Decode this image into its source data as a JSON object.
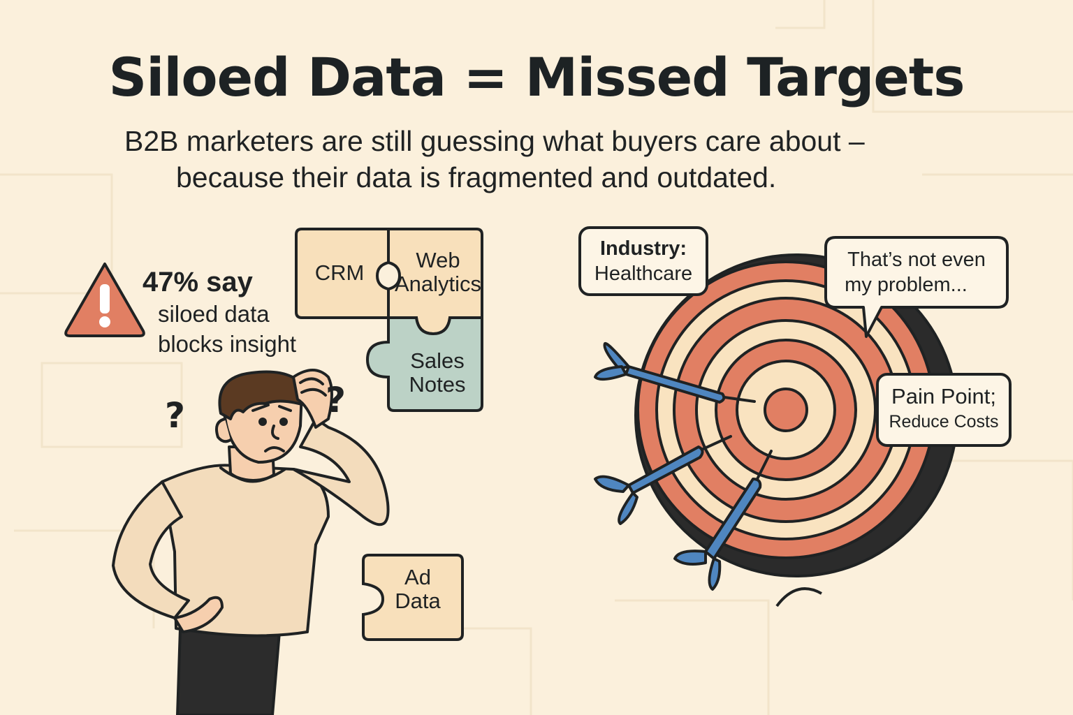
{
  "title": "Siloed Data = Missed Targets",
  "subtitle": {
    "line1": "B2B marketers are still guessing what buyers care about –",
    "line2": "because their data is fragmented and outdated."
  },
  "stat": {
    "headline": "47% say",
    "line1": "siloed data",
    "line2": "blocks insight"
  },
  "puzzle": {
    "crm": "CRM",
    "web_1": "Web",
    "web_2": "Analytics",
    "sales_1": "Sales",
    "sales_2": "Notes",
    "ad_1": "Ad",
    "ad_2": "Data"
  },
  "question_mark": "?",
  "bubbles": {
    "industry_1": "Industry:",
    "industry_2": "Healthcare",
    "problem_1": "That’s not even",
    "problem_2": "my problem...",
    "pain_1": "Pain Point;",
    "pain_2": "Reduce Costs"
  },
  "colors": {
    "background": "#fbf0dc",
    "accent_orange": "#e17f63",
    "target_cream": "#f9e3c0",
    "dart_blue": "#4f86c0",
    "sales_teal": "#bcd2c6",
    "piece_cream": "#f8e0bb",
    "shirt": "#f3dcbc",
    "ink": "#1f2223"
  }
}
